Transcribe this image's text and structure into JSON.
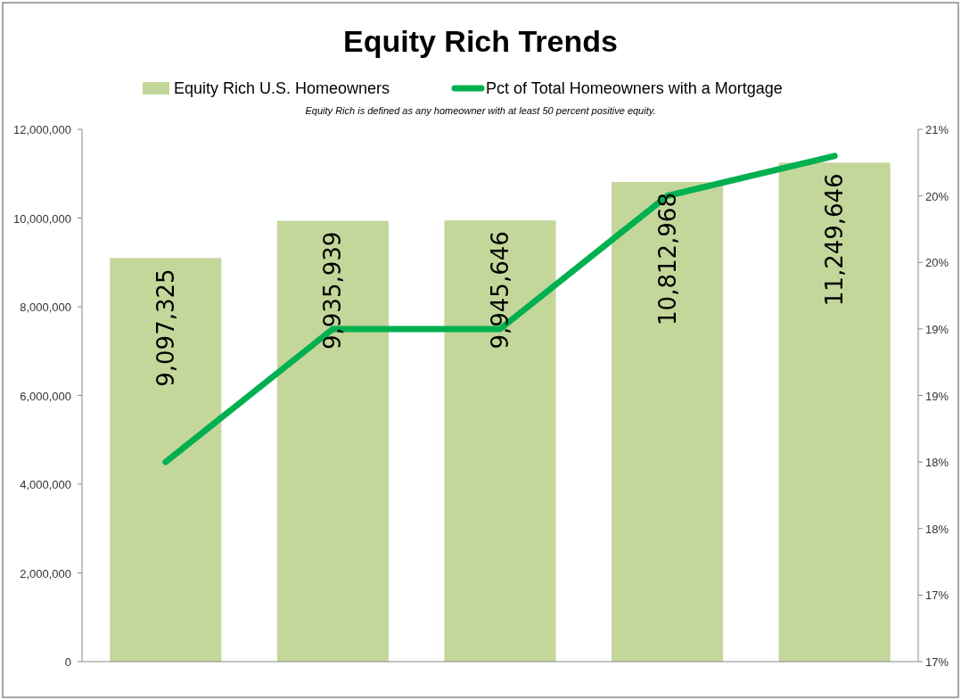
{
  "chart_data": {
    "type": "bar",
    "title": "Equity Rich Trends",
    "subtitle": "Equity Rich is defined as any homeowner with at least 50 percent positive equity.",
    "categories": [
      null,
      null,
      null,
      null,
      null
    ],
    "series": [
      {
        "name": "Equity Rich U.S. Homeowners",
        "color": "#c4d79b",
        "values": [
          9097325,
          9935939,
          9945646,
          10812968,
          11249646
        ],
        "value_labels": [
          "9,097,325",
          "9,935,939",
          "9,945,646",
          "10,812,968",
          "11,249,646"
        ]
      },
      {
        "name": "Pct of Total Homeowners with a Mortgage",
        "type": "line",
        "axis": "y2",
        "color": "#00b050",
        "values": [
          18.0,
          19.0,
          19.0,
          20.0,
          20.3
        ]
      }
    ],
    "ylim": [
      0,
      12000000
    ],
    "yticks": [
      {
        "value": 0,
        "label": "0"
      },
      {
        "value": 2000000,
        "label": "2,000,000"
      },
      {
        "value": 4000000,
        "label": "4,000,000"
      },
      {
        "value": 6000000,
        "label": "6,000,000"
      },
      {
        "value": 8000000,
        "label": "8,000,000"
      },
      {
        "value": 10000000,
        "label": "10,000,000"
      },
      {
        "value": 12000000,
        "label": "12,000,000"
      }
    ],
    "y2lim": [
      16.5,
      20.5
    ],
    "y2ticks": [
      {
        "value": 16.5,
        "label": "17%"
      },
      {
        "value": 17,
        "label": "17%"
      },
      {
        "value": 17.5,
        "label": "18%"
      },
      {
        "value": 18,
        "label": "18%"
      },
      {
        "value": 18.5,
        "label": "19%"
      },
      {
        "value": 19,
        "label": "19%"
      },
      {
        "value": 19.5,
        "label": "20%"
      },
      {
        "value": 20,
        "label": "20%"
      },
      {
        "value": 20.5,
        "label": "21%"
      }
    ],
    "legend": "top",
    "grid": false,
    "marker": "none",
    "line_style": "solid"
  }
}
